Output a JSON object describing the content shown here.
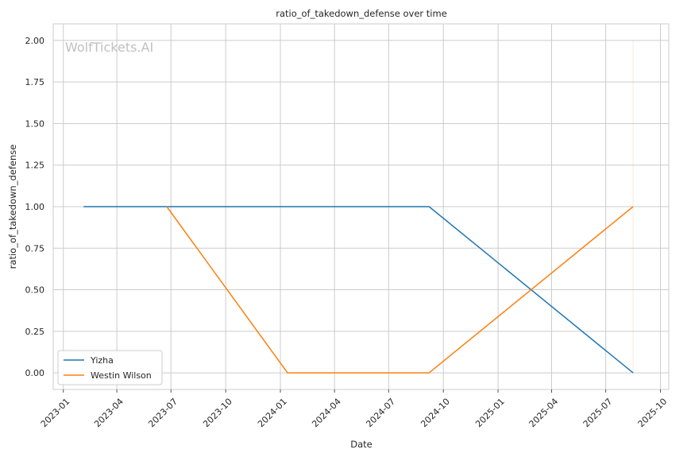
{
  "watermark": "WolfTickets.AI",
  "chart_data": {
    "type": "line",
    "title": "ratio_of_takedown_defense over time",
    "xlabel": "Date",
    "ylabel": "ratio_of_takedown_defense",
    "x_ticks": [
      "2023-01",
      "2023-04",
      "2023-07",
      "2023-10",
      "2024-01",
      "2024-04",
      "2024-07",
      "2024-10",
      "2025-01",
      "2025-04",
      "2025-07",
      "2025-10"
    ],
    "y_ticks": [
      "0.00",
      "0.25",
      "0.50",
      "0.75",
      "1.00",
      "1.25",
      "1.50",
      "1.75",
      "2.00"
    ],
    "xlim": [
      "2022-12-15",
      "2025-10-15"
    ],
    "ylim": [
      -0.1,
      2.1
    ],
    "grid": true,
    "legend_position": "lower-left",
    "series": [
      {
        "name": "Yizha",
        "color": "#1f77b4",
        "points": [
          {
            "x": "2023-02-04",
            "y": 1.0
          },
          {
            "x": "2024-09-07",
            "y": 1.0
          },
          {
            "x": "2025-08-16",
            "y": 0.0
          }
        ]
      },
      {
        "name": "Westin Wilson",
        "color": "#ff7f0e",
        "points": [
          {
            "x": "2023-06-24",
            "y": 1.0
          },
          {
            "x": "2024-01-13",
            "y": 0.0
          },
          {
            "x": "2024-09-07",
            "y": 0.0
          },
          {
            "x": "2025-08-16",
            "y": 1.0
          }
        ]
      }
    ],
    "reference_line": {
      "x": "2025-08-16",
      "color": "#ff7f0e"
    }
  }
}
